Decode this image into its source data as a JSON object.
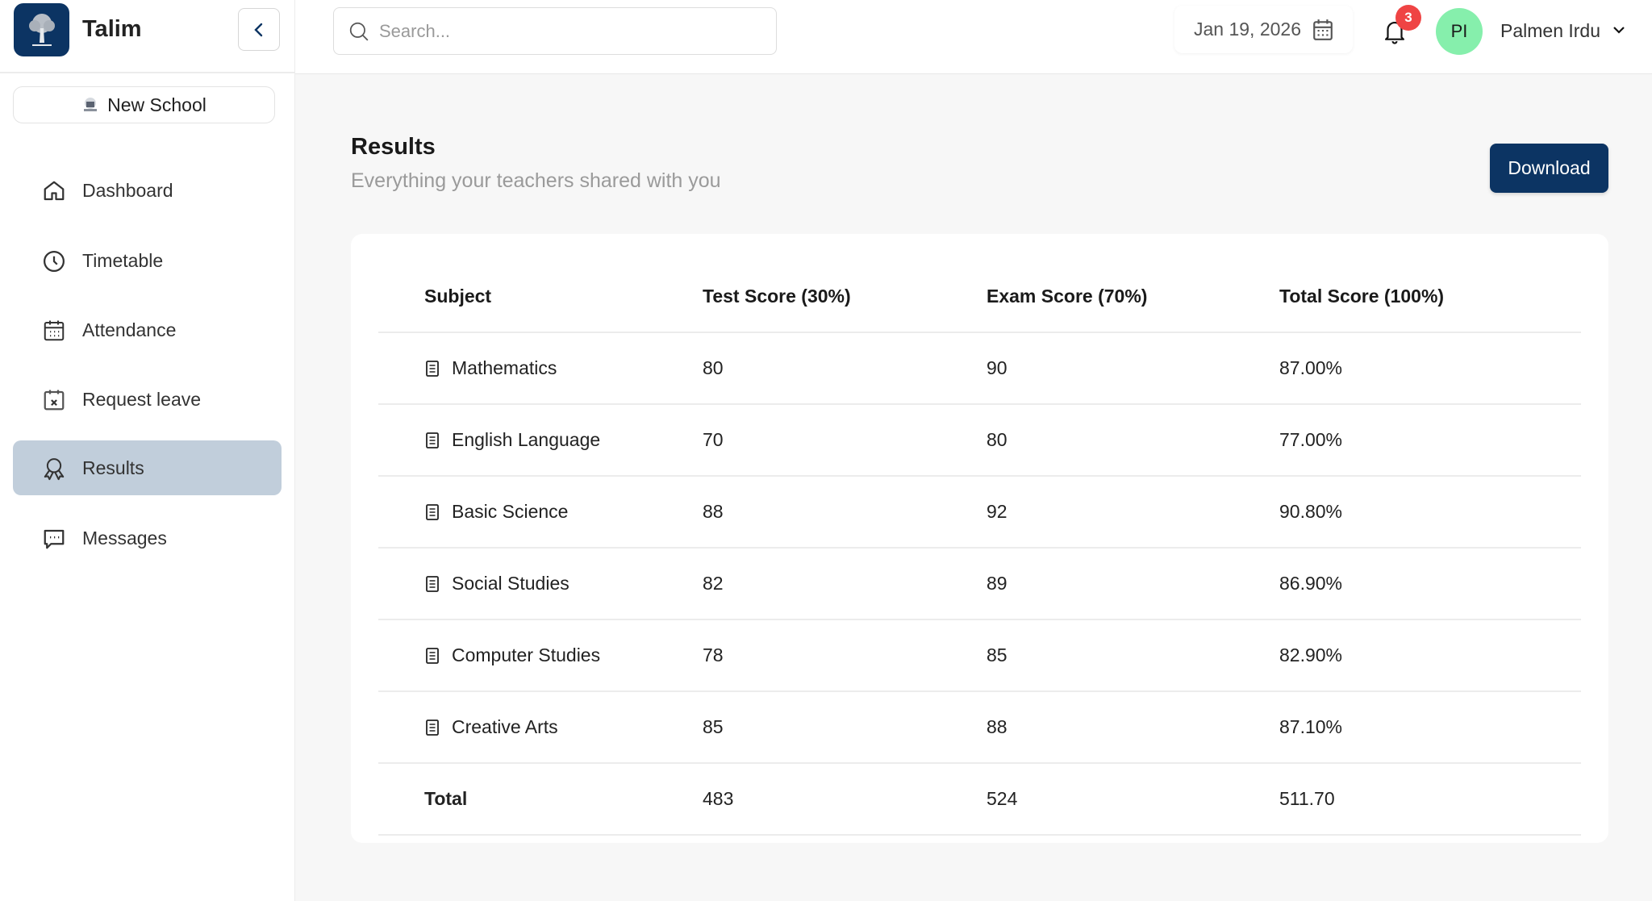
{
  "app": {
    "name": "Talim",
    "school_label": "New School"
  },
  "sidebar": {
    "items": [
      {
        "label": "Dashboard",
        "icon": "home-icon"
      },
      {
        "label": "Timetable",
        "icon": "clock-icon"
      },
      {
        "label": "Attendance",
        "icon": "calendar-icon"
      },
      {
        "label": "Request leave",
        "icon": "calendar-x-icon"
      },
      {
        "label": "Results",
        "icon": "award-icon",
        "active": true
      },
      {
        "label": "Messages",
        "icon": "message-icon"
      }
    ]
  },
  "header": {
    "search_placeholder": "Search...",
    "date": "Jan 19, 2026",
    "notification_count": "3",
    "avatar_initials": "PI",
    "user_name": "Palmen Irdu"
  },
  "page": {
    "title": "Results",
    "subtitle": "Everything your teachers shared with you",
    "download_label": "Download"
  },
  "table": {
    "headers": [
      "Subject",
      "Test Score (30%)",
      "Exam Score (70%)",
      "Total Score (100%)"
    ],
    "rows": [
      [
        "Mathematics",
        "80",
        "90",
        "87.00%"
      ],
      [
        "English Language",
        "70",
        "80",
        "77.00%"
      ],
      [
        "Basic Science",
        "88",
        "92",
        "90.80%"
      ],
      [
        "Social Studies",
        "82",
        "89",
        "86.90%"
      ],
      [
        "Computer Studies",
        "78",
        "85",
        "82.90%"
      ],
      [
        "Creative Arts",
        "85",
        "88",
        "87.10%"
      ]
    ],
    "total": [
      "Total",
      "483",
      "524",
      "511.70"
    ]
  },
  "colors": {
    "brand": "#0c3463",
    "active_nav": "#c1cedb",
    "badge": "#ef4444",
    "avatar": "#86efac"
  }
}
